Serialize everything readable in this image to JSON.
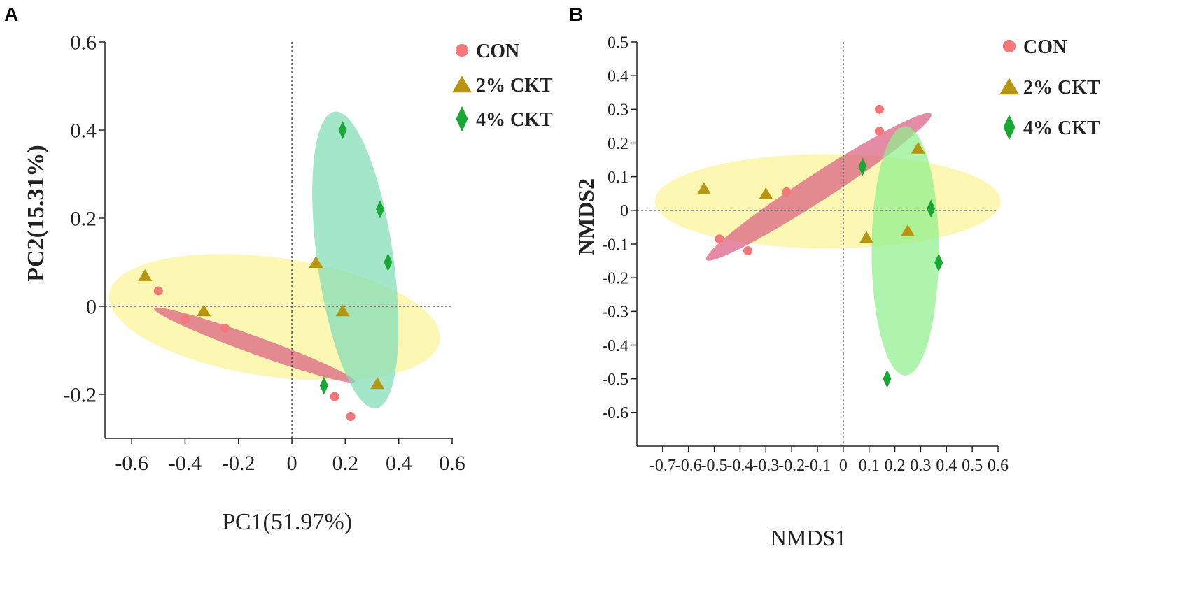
{
  "chart_data": [
    {
      "panel_label": "A",
      "type": "scatter",
      "xlabel": "PC1(51.97%)",
      "ylabel": "PC2(15.31%)",
      "xlim": [
        -0.7,
        0.6
      ],
      "ylim": [
        -0.3,
        0.6
      ],
      "xticks": [
        -0.6,
        -0.4,
        -0.2,
        0,
        0.2,
        0.4,
        0.6
      ],
      "xtick_labels": [
        "-0.6",
        "-0.4",
        "-0.2",
        "0",
        "0.2",
        "0.4",
        "0.6"
      ],
      "yticks": [
        -0.2,
        0,
        0.2,
        0.4,
        0.6
      ],
      "ytick_labels": [
        "-0.2",
        "0",
        "0.2",
        "0.4",
        "0.6"
      ],
      "reference_lines": {
        "x": 0,
        "y": 0
      },
      "series": [
        {
          "name": "CON",
          "marker": "circle",
          "color": "#f4777a",
          "points": [
            [
              -0.5,
              0.035
            ],
            [
              -0.4,
              -0.03
            ],
            [
              -0.25,
              -0.05
            ],
            [
              0.16,
              -0.205
            ],
            [
              0.22,
              -0.25
            ]
          ],
          "ellipse": {
            "center": [
              -0.14,
              -0.088
            ],
            "rx": 0.4,
            "ry": 0.02,
            "angle_deg": -20.0,
            "color": "#d95f82"
          }
        },
        {
          "name": "2% CKT",
          "marker": "triangle",
          "color": "#b8950f",
          "points": [
            [
              -0.55,
              0.07
            ],
            [
              -0.33,
              -0.01
            ],
            [
              0.09,
              0.1
            ],
            [
              0.19,
              -0.01
            ],
            [
              0.32,
              -0.175
            ]
          ],
          "ellipse": {
            "center": [
              -0.065,
              -0.025
            ],
            "rx": 0.625,
            "ry": 0.135,
            "angle_deg": -8.0,
            "color": "#fbf6a4"
          }
        },
        {
          "name": "4% CKT",
          "marker": "diamond",
          "color": "#1aa834",
          "points": [
            [
              0.19,
              0.4
            ],
            [
              0.33,
              0.22
            ],
            [
              0.36,
              0.1
            ],
            [
              0.12,
              -0.18
            ]
          ],
          "ellipse": {
            "center": [
              0.2375,
              0.105
            ],
            "rx": 0.1425,
            "ry": 0.34,
            "angle_deg": 8.0,
            "color": "#7fdcb5"
          }
        }
      ],
      "legend_position": "top-right"
    },
    {
      "panel_label": "B",
      "type": "scatter",
      "xlabel": "NMDS1",
      "ylabel": "NMDS2",
      "xlim": [
        -0.8,
        0.6
      ],
      "ylim": [
        -0.7,
        0.5
      ],
      "xticks": [
        -0.7,
        -0.6,
        -0.5,
        -0.4,
        -0.3,
        -0.2,
        -0.1,
        0,
        0.1,
        0.2,
        0.3,
        0.4,
        0.5,
        0.6
      ],
      "xtick_labels": [
        "-0.7",
        "-0.6",
        "-0.5",
        "-0.4",
        "-0.3",
        "-0.2",
        "-0.1",
        "0",
        "0.1",
        "0.2",
        "0.3",
        "0.4",
        "0.5",
        "0.6"
      ],
      "yticks": [
        -0.6,
        -0.5,
        -0.4,
        -0.3,
        -0.2,
        -0.1,
        0,
        0.1,
        0.2,
        0.3,
        0.4,
        0.5
      ],
      "ytick_labels": [
        "-0.6",
        "-0.5",
        "-0.4",
        "-0.3",
        "-0.2",
        "-0.1",
        "0",
        "0.1",
        "0.2",
        "0.3",
        "0.4",
        "0.5"
      ],
      "reference_lines": {
        "x": 0,
        "y": 0
      },
      "series": [
        {
          "name": "CON",
          "marker": "circle",
          "color": "#f4777a",
          "points": [
            [
              -0.48,
              -0.085
            ],
            [
              -0.37,
              -0.12
            ],
            [
              -0.22,
              0.055
            ],
            [
              0.14,
              0.3
            ],
            [
              0.14,
              0.235
            ]
          ],
          "ellipse": {
            "center": [
              -0.095,
              0.07
            ],
            "rx": 0.52,
            "ry": 0.04,
            "angle_deg": 33.0,
            "color": "#d95f82"
          }
        },
        {
          "name": "2% CKT",
          "marker": "triangle",
          "color": "#b8950f",
          "points": [
            [
              -0.54,
              0.065
            ],
            [
              -0.3,
              0.05
            ],
            [
              0.09,
              -0.08
            ],
            [
              0.29,
              0.185
            ],
            [
              0.25,
              -0.06
            ]
          ],
          "ellipse": {
            "center": [
              -0.06,
              0.027
            ],
            "rx": 0.67,
            "ry": 0.14,
            "angle_deg": 0.0,
            "color": "#fbf6a4"
          }
        },
        {
          "name": "4% CKT",
          "marker": "diamond",
          "color": "#1aa834",
          "points": [
            [
              0.075,
              0.13
            ],
            [
              0.34,
              0.005
            ],
            [
              0.37,
              -0.155
            ],
            [
              0.17,
              -0.5
            ]
          ],
          "ellipse": {
            "center": [
              0.24,
              -0.12
            ],
            "rx": 0.13,
            "ry": 0.37,
            "angle_deg": 0.0,
            "color": "#8ff08c"
          }
        }
      ],
      "legend_position": "top-right"
    }
  ]
}
